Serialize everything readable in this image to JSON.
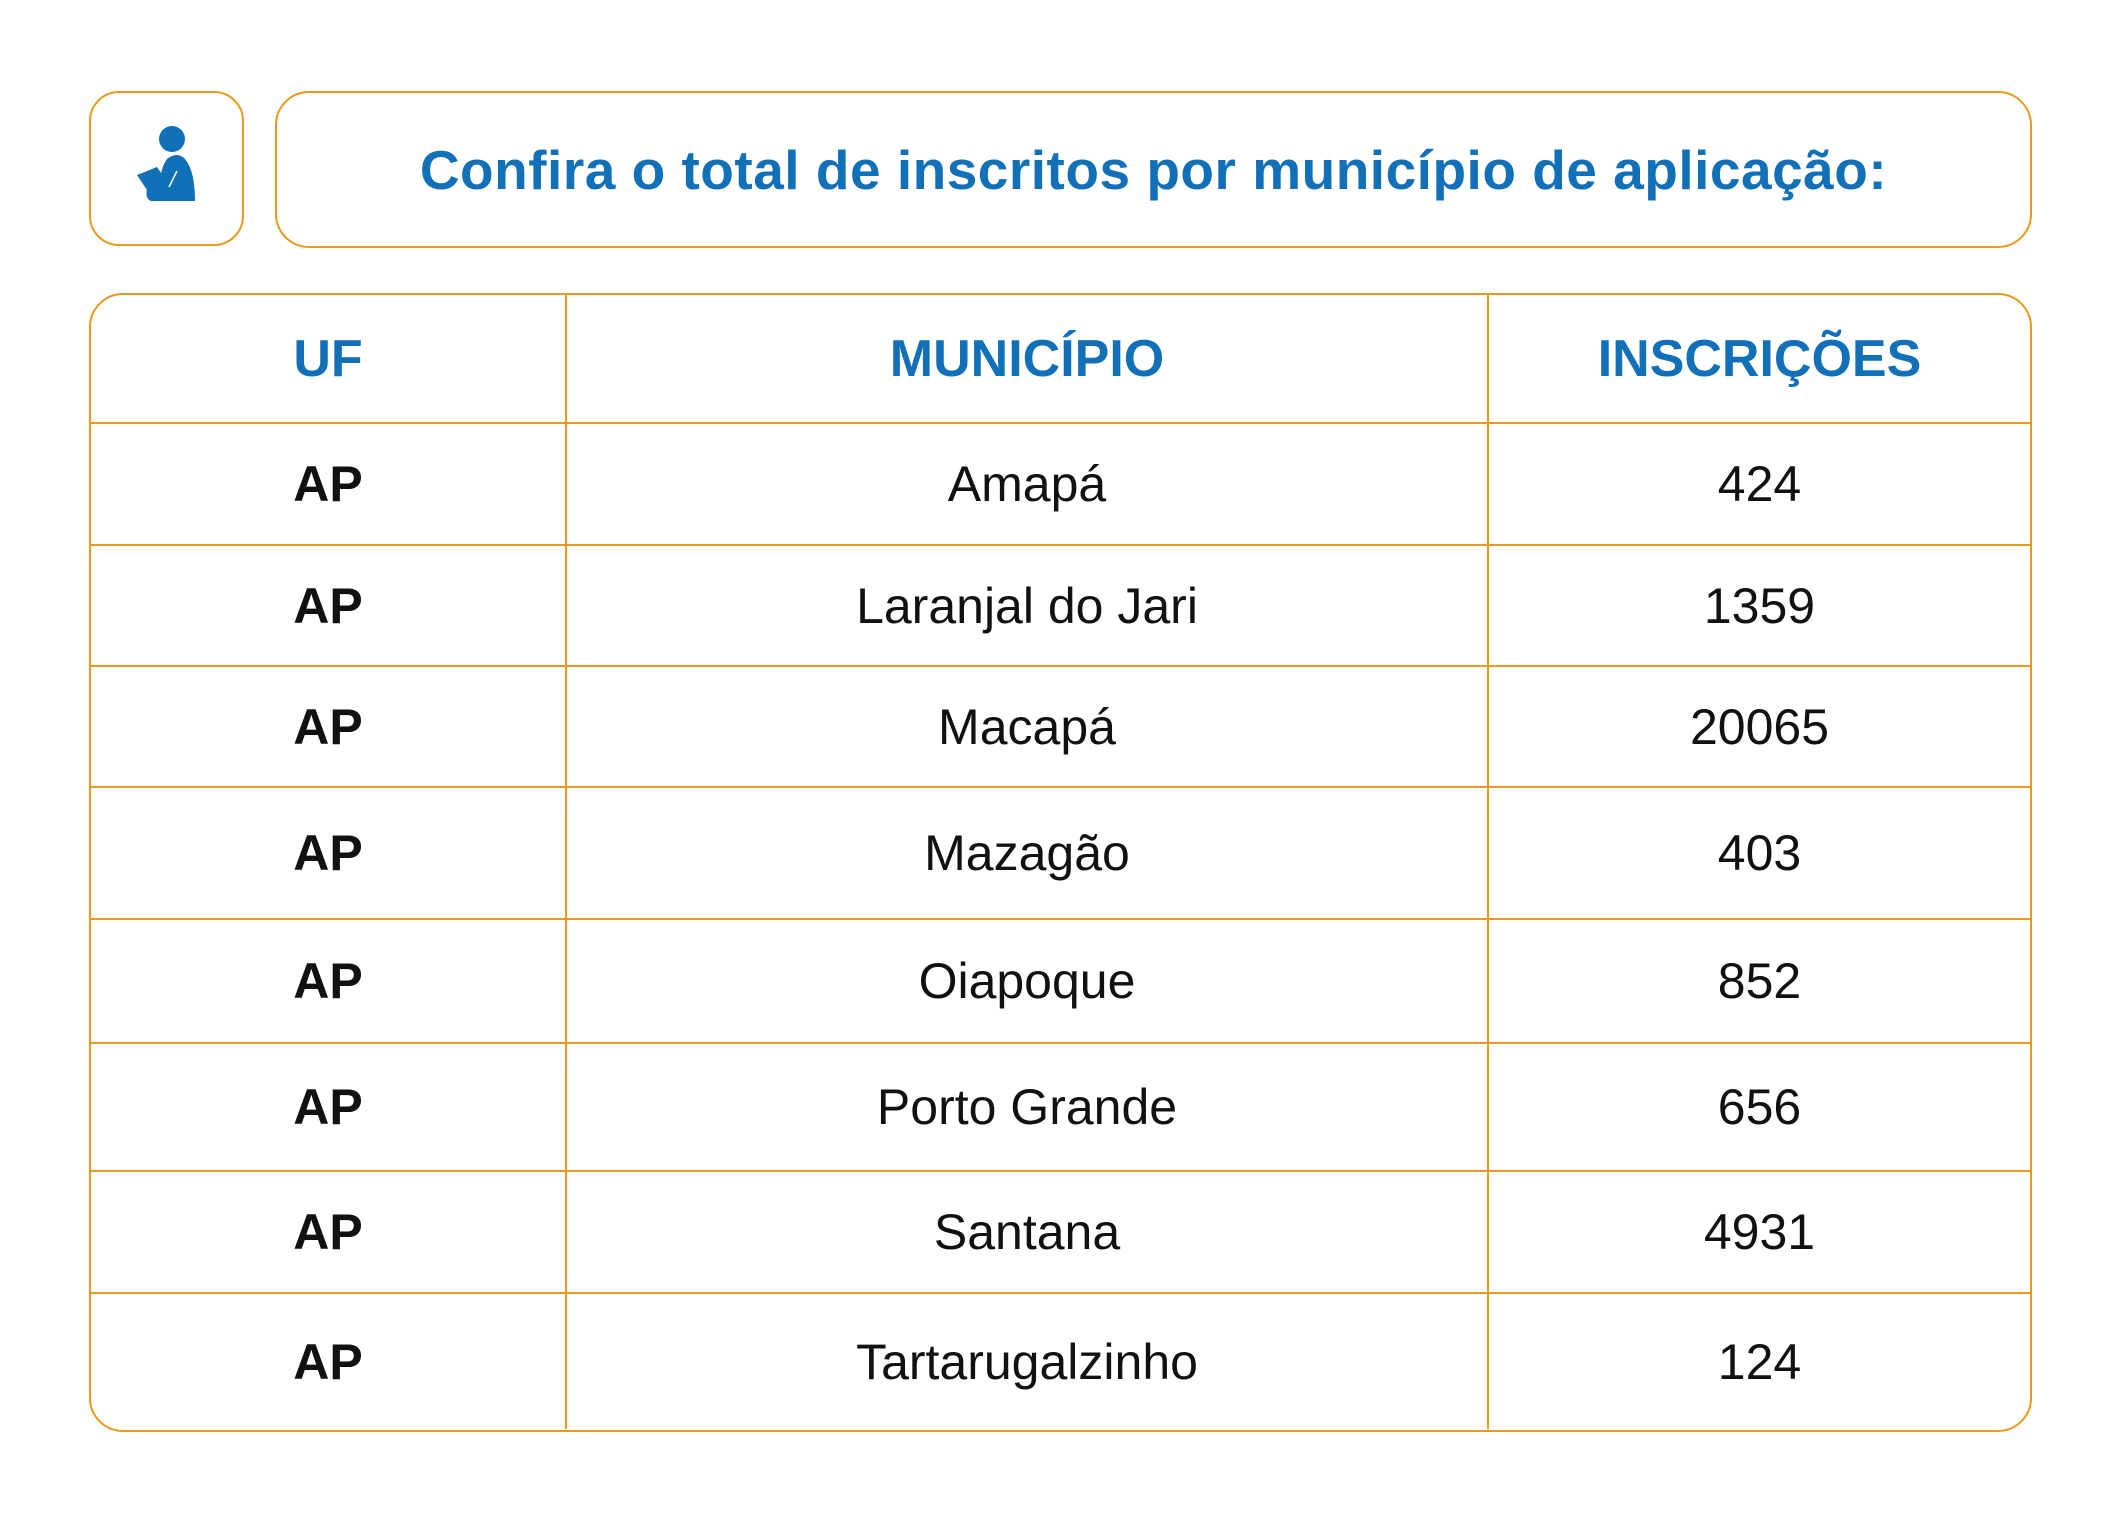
{
  "title": "Confira o total de inscritos por município de aplicação:",
  "icon": "person-reading-icon",
  "colors": {
    "accent": "#1170b8",
    "border": "#e89a1c"
  },
  "table": {
    "headers": [
      "UF",
      "MUNICÍPIO",
      "INSCRIÇÕES"
    ],
    "rows": [
      [
        "AP",
        "Amapá",
        "424"
      ],
      [
        "AP",
        "Laranjal do Jari",
        "1359"
      ],
      [
        "AP",
        "Macapá",
        "20065"
      ],
      [
        "AP",
        "Mazagão",
        "403"
      ],
      [
        "AP",
        "Oiapoque",
        "852"
      ],
      [
        "AP",
        "Porto Grande",
        "656"
      ],
      [
        "AP",
        "Santana",
        "4931"
      ],
      [
        "AP",
        "Tartarugalzinho",
        "124"
      ]
    ]
  }
}
